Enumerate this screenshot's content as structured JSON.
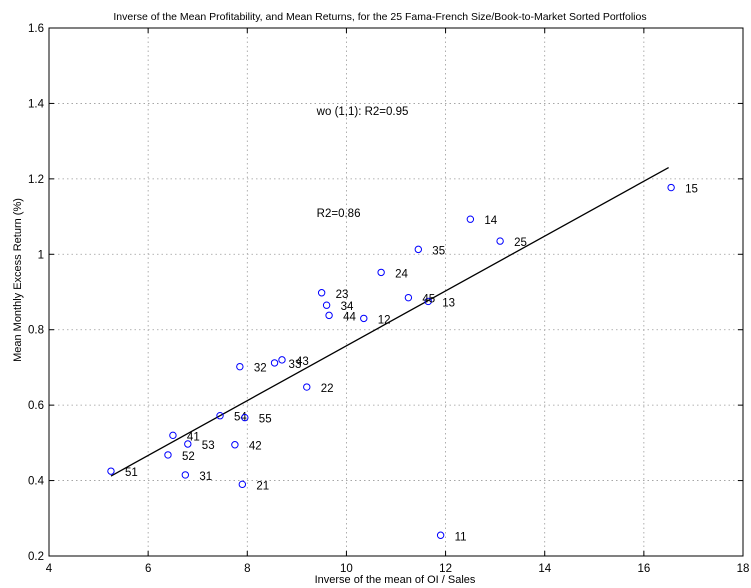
{
  "chart_data": {
    "type": "scatter",
    "title": "Inverse of the Mean Profitability, and Mean Returns, for the 25 Fama-French Size/Book-to-Market Sorted Portfolios",
    "xlabel": "Inverse of the mean of OI / Sales",
    "ylabel": "Mean Monthly Excess Return (%)",
    "xlim": [
      4,
      18
    ],
    "ylim": [
      0.2,
      1.6
    ],
    "xticks": [
      4,
      6,
      8,
      10,
      12,
      14,
      16,
      18
    ],
    "yticks": [
      0.2,
      0.4,
      0.6,
      0.8,
      1,
      1.2,
      1.4,
      1.6
    ],
    "xtick_labels": [
      "4",
      "6",
      "8",
      "10",
      "12",
      "14",
      "16",
      "18"
    ],
    "ytick_labels": [
      "0.2",
      "0.4",
      "0.6",
      "0.8",
      "1",
      "1.2",
      "1.4",
      "1.6"
    ],
    "grid": true,
    "marker": "circle-open",
    "marker_color": "#0000ff",
    "line_color": "#000000",
    "points": [
      {
        "label": "11",
        "x": 11.9,
        "y": 0.255
      },
      {
        "label": "12",
        "x": 10.35,
        "y": 0.83
      },
      {
        "label": "13",
        "x": 11.65,
        "y": 0.875
      },
      {
        "label": "14",
        "x": 12.5,
        "y": 1.093
      },
      {
        "label": "15",
        "x": 16.55,
        "y": 1.177
      },
      {
        "label": "21",
        "x": 7.9,
        "y": 0.39
      },
      {
        "label": "22",
        "x": 9.2,
        "y": 0.648
      },
      {
        "label": "23",
        "x": 9.5,
        "y": 0.898
      },
      {
        "label": "24",
        "x": 10.7,
        "y": 0.952
      },
      {
        "label": "25",
        "x": 13.1,
        "y": 1.035
      },
      {
        "label": "31",
        "x": 6.75,
        "y": 0.415
      },
      {
        "label": "32",
        "x": 7.85,
        "y": 0.702
      },
      {
        "label": "33",
        "x": 8.55,
        "y": 0.712
      },
      {
        "label": "34",
        "x": 9.6,
        "y": 0.865
      },
      {
        "label": "35",
        "x": 11.45,
        "y": 1.013
      },
      {
        "label": "41",
        "x": 6.5,
        "y": 0.52
      },
      {
        "label": "42",
        "x": 7.75,
        "y": 0.495
      },
      {
        "label": "43",
        "x": 8.7,
        "y": 0.72
      },
      {
        "label": "44",
        "x": 9.65,
        "y": 0.838
      },
      {
        "label": "45",
        "x": 11.25,
        "y": 0.885
      },
      {
        "label": "51",
        "x": 5.25,
        "y": 0.425
      },
      {
        "label": "52",
        "x": 6.4,
        "y": 0.468
      },
      {
        "label": "53",
        "x": 6.8,
        "y": 0.497
      },
      {
        "label": "54",
        "x": 7.45,
        "y": 0.572
      },
      {
        "label": "55",
        "x": 7.95,
        "y": 0.567
      }
    ],
    "fit_line": {
      "x": [
        5.25,
        16.5
      ],
      "y": [
        0.412,
        1.23
      ]
    },
    "annotations": [
      {
        "text": "wo (1,1): R2=0.95",
        "x": 9.4,
        "y": 1.38
      },
      {
        "text": "R2=0.86",
        "x": 9.4,
        "y": 1.11
      }
    ]
  }
}
